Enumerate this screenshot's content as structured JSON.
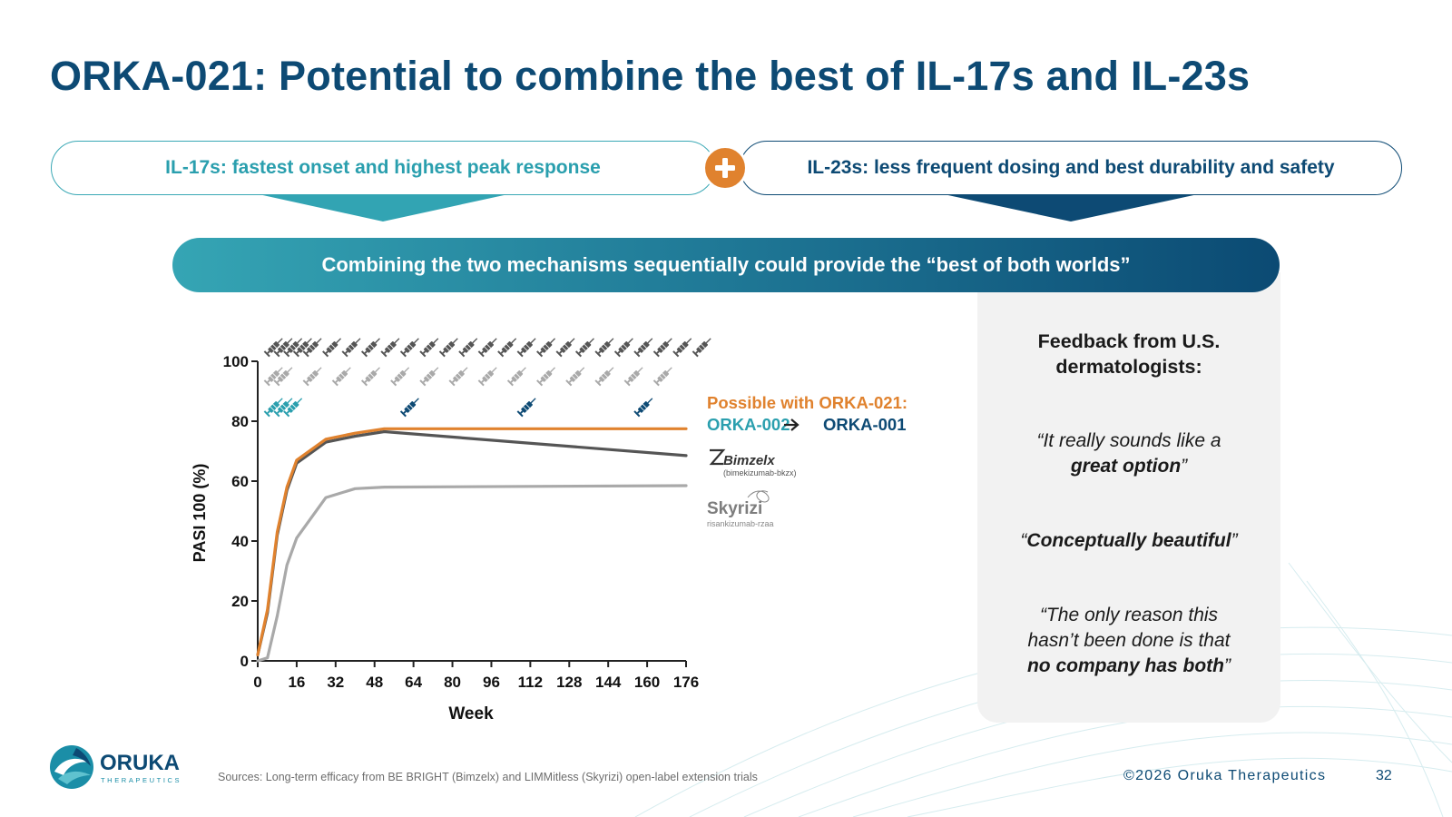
{
  "slide": {
    "title": "ORKA-021: Potential to combine the best of IL-17s and IL-23s",
    "left_pill": "IL-17s: fastest onset and highest peak response",
    "right_pill": "IL-23s: less frequent dosing and best durability and safety",
    "banner": "Combining the two mechanisms sequentially could provide the “best of both worlds”",
    "sources": "Sources: Long-term efficacy from BE BRIGHT (Bimzelx) and LIMMitless (Skyrizi) open-label extension trials",
    "copyright": "©2026 Oruka Therapeutics",
    "page_number": "32",
    "logo": {
      "name": "ORUKA",
      "tagline": "THERAPEUTICS"
    }
  },
  "feedback": {
    "heading_line1": "Feedback from U.S.",
    "heading_line2": "dermatologists:",
    "q1_line1": "“It really sounds like a",
    "q1_line2": "great option",
    "q1_close": "”",
    "q2_open": "“",
    "q2_text": "Conceptually beautiful",
    "q2_close": "”",
    "q3_line1": "“The only reason this",
    "q3_line2": "hasn’t been done is that",
    "q3_line3": "no company has both",
    "q3_close": "”"
  },
  "colors": {
    "navy": "#0d4a74",
    "teal": "#2a9fae",
    "orange": "#e0822e",
    "bimzelx": "#555555",
    "skyrizi": "#a9a9a9"
  },
  "chart_data": {
    "type": "line",
    "xlabel": "Week",
    "ylabel": "PASI 100 (%)",
    "xlim": [
      0,
      176
    ],
    "ylim": [
      0,
      100
    ],
    "xticks": [
      0,
      16,
      32,
      48,
      64,
      80,
      96,
      112,
      128,
      144,
      160,
      176
    ],
    "yticks": [
      0,
      20,
      40,
      60,
      80,
      100
    ],
    "series": [
      {
        "name": "ORKA-002 → ORKA-001",
        "color": "#e0822e",
        "points": [
          [
            0,
            2
          ],
          [
            4,
            17
          ],
          [
            8,
            43
          ],
          [
            12,
            58
          ],
          [
            16,
            67
          ],
          [
            28,
            74
          ],
          [
            40,
            76
          ],
          [
            52,
            77.5
          ],
          [
            176,
            77.5
          ]
        ]
      },
      {
        "name": "Bimzelx",
        "color": "#555555",
        "points": [
          [
            0,
            2
          ],
          [
            4,
            16
          ],
          [
            8,
            42
          ],
          [
            12,
            57
          ],
          [
            16,
            66
          ],
          [
            28,
            73
          ],
          [
            40,
            75
          ],
          [
            52,
            76.5
          ],
          [
            176,
            68.5
          ]
        ]
      },
      {
        "name": "Skyrizi",
        "color": "#a9a9a9",
        "points": [
          [
            0,
            0
          ],
          [
            4,
            1
          ],
          [
            8,
            15
          ],
          [
            12,
            32
          ],
          [
            16,
            41
          ],
          [
            28,
            54.5
          ],
          [
            40,
            57.5
          ],
          [
            52,
            58
          ],
          [
            176,
            58.5
          ]
        ]
      }
    ],
    "legend": {
      "possible_label": "Possible with ORKA-021:",
      "orka002": "ORKA-002",
      "orka001": "ORKA-001",
      "bimzelx_brand": "Bimzelx",
      "bimzelx_generic": "(bimekizumab-bkzx)",
      "skyrizi_brand": "Skyrizi",
      "skyrizi_generic": "risankizumab-rzaa"
    },
    "dosing_weeks": {
      "bimzelx": [
        0,
        4,
        8,
        12,
        16,
        24,
        32,
        40,
        48,
        56,
        64,
        72,
        80,
        88,
        96,
        104,
        112,
        120,
        128,
        136,
        144,
        152,
        160,
        168,
        176
      ],
      "skyrizi": [
        0,
        4,
        16,
        28,
        40,
        52,
        64,
        76,
        88,
        100,
        112,
        124,
        136,
        148,
        160
      ],
      "orka": [
        0,
        4,
        8,
        56,
        104,
        152
      ]
    }
  }
}
